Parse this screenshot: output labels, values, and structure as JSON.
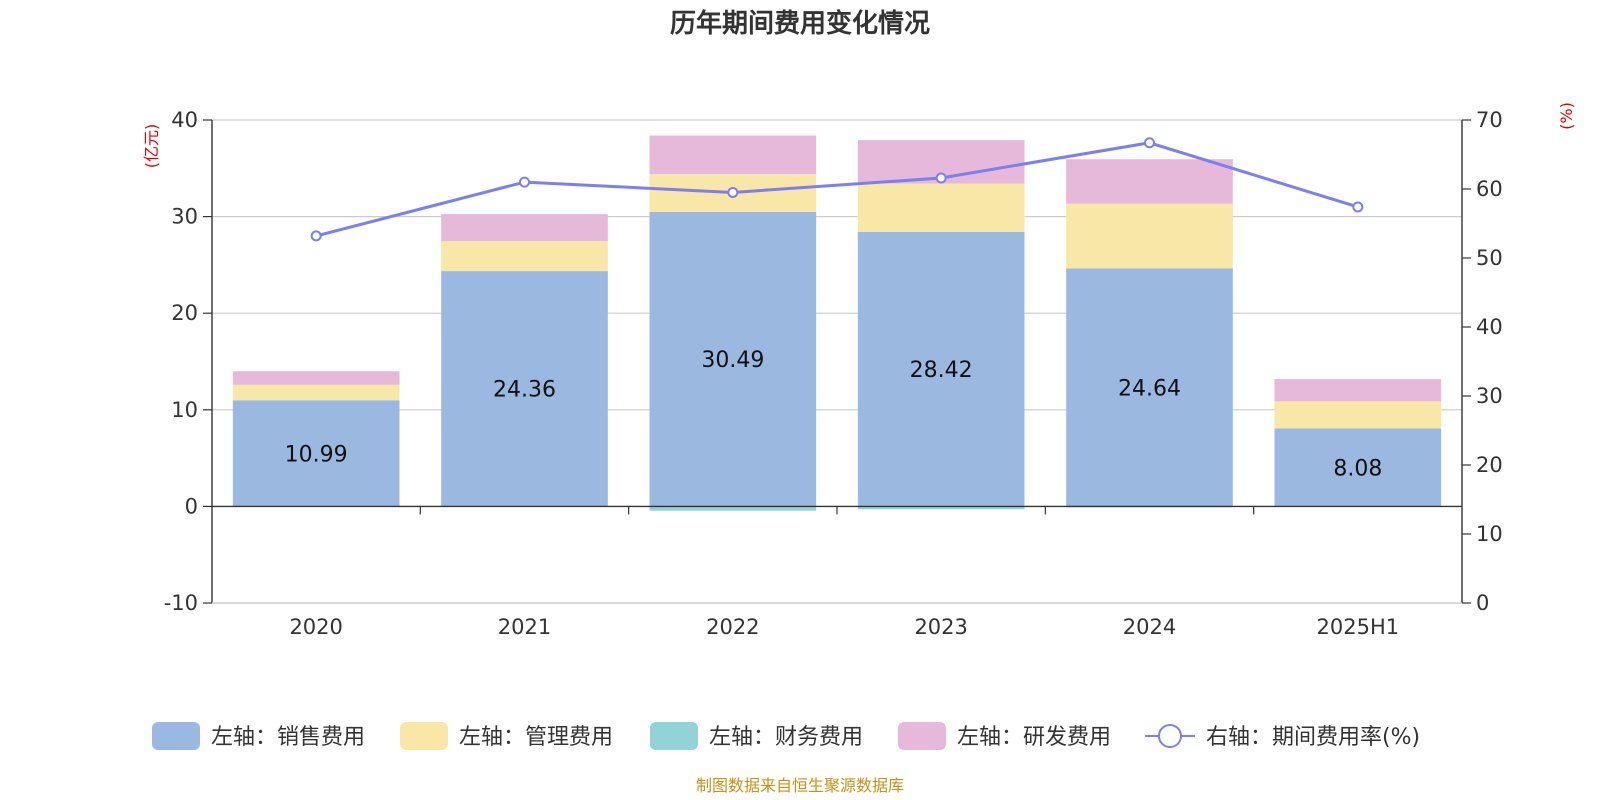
{
  "chart_data": {
    "type": "bar",
    "title": "历年期间费用变化情况",
    "categories": [
      "2020",
      "2021",
      "2022",
      "2023",
      "2024",
      "2025H1"
    ],
    "left_axis": {
      "unit": "(亿元)",
      "ylim": [
        -10,
        40
      ],
      "ticks": [
        -10,
        0,
        10,
        20,
        30,
        40
      ]
    },
    "right_axis": {
      "unit": "(%)",
      "ylim": [
        0,
        70
      ],
      "ticks": [
        0,
        10,
        20,
        30,
        40,
        50,
        60,
        70
      ]
    },
    "series": [
      {
        "name": "左轴：销售费用",
        "axis": "left",
        "kind": "bar",
        "color": "#9bb8e1",
        "values": [
          10.99,
          24.36,
          30.49,
          28.42,
          24.64,
          8.08
        ],
        "labels": [
          "10.99",
          "24.36",
          "30.49",
          "28.42",
          "24.64",
          "8.08"
        ]
      },
      {
        "name": "左轴：管理费用",
        "axis": "left",
        "kind": "bar",
        "color": "#f8e7a7",
        "values": [
          1.6,
          3.1,
          3.9,
          5.0,
          6.7,
          2.8
        ]
      },
      {
        "name": "左轴：财务费用",
        "axis": "left",
        "kind": "bar",
        "color": "#92d3d5",
        "values": [
          -0.05,
          -0.05,
          -0.45,
          -0.3,
          -0.1,
          -0.05
        ]
      },
      {
        "name": "左轴：研发费用",
        "axis": "left",
        "kind": "bar",
        "color": "#e6b9da",
        "values": [
          1.4,
          2.8,
          4.0,
          4.5,
          4.6,
          2.3
        ]
      },
      {
        "name": "右轴：期间费用率(%)",
        "axis": "right",
        "kind": "line",
        "color": "#7b7ff0",
        "values": [
          53.2,
          61.0,
          59.5,
          61.6,
          66.7,
          57.4
        ]
      }
    ],
    "grid": true,
    "legend_position": "bottom"
  },
  "source_text": "制图数据来自恒生聚源数据库"
}
